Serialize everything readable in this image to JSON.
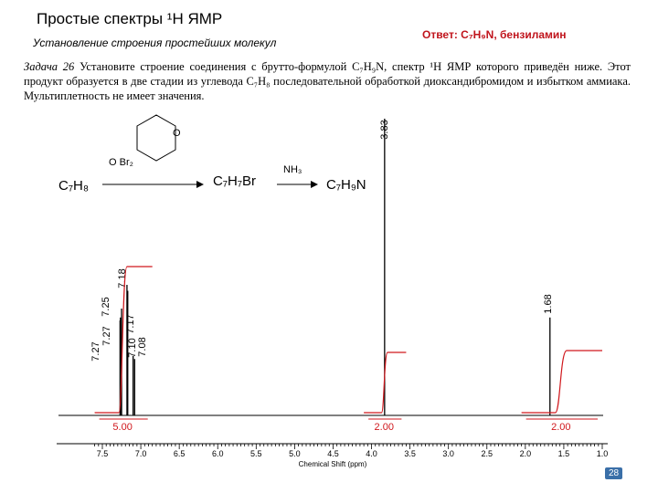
{
  "header": {
    "title": "Простые спектры ¹H ЯМР",
    "subtitle": "Установление строения простейших молекул",
    "answer": "Ответ: C₇H₉N, бензиламин"
  },
  "task": {
    "label": "Задача 26",
    "text": "Установите строение соединения с брутто-формулой C₇H₉N, спектр ¹H ЯМР которого приведён ниже. Этот продукт образуется в две стадии из углевода C₇H₈ последовательной обработкой диоксандибромидом и избытком аммиака. Мультиплетность не имеет значения."
  },
  "scheme": {
    "start": "C₇H₈",
    "reagent1": "O Br₂",
    "ring_o": "O",
    "intermediate": "C₇H₇Br",
    "reagent2": "NH₃",
    "product": "C₇H₉N"
  },
  "chart_data": {
    "type": "line",
    "xlabel": "Chemical Shift (ppm)",
    "xlim": [
      7.6,
      1.0
    ],
    "x_ticks": [
      "7.5",
      "7.0",
      "6.5",
      "6.0",
      "5.5",
      "5.0",
      "4.5",
      "4.0",
      "3.5",
      "3.0",
      "2.5",
      "2.0",
      "1.5",
      "1.0"
    ],
    "peaks": [
      {
        "label": "7.27",
        "ppm": 7.27,
        "height": 0.32
      },
      {
        "label": "7.27",
        "ppm": 7.265,
        "height": 0.33
      },
      {
        "label": "7.25",
        "ppm": 7.25,
        "height": 0.36
      },
      {
        "label": "7.18",
        "ppm": 7.18,
        "height": 0.44
      },
      {
        "label": "7.17",
        "ppm": 7.17,
        "height": 0.42
      },
      {
        "label": "7.10",
        "ppm": 7.1,
        "height": 0.2
      },
      {
        "label": "7.08",
        "ppm": 7.08,
        "height": 0.19
      },
      {
        "label": "3.83",
        "ppm": 3.83,
        "height": 1.0
      },
      {
        "label": "1.68",
        "ppm": 1.68,
        "height": 0.33
      }
    ],
    "integrals": [
      {
        "label": "5.00",
        "from": 7.6,
        "to": 6.85
      },
      {
        "label": "2.00",
        "from": 4.1,
        "to": 3.55
      },
      {
        "label": "2.00",
        "from": 2.05,
        "to": 1.0
      }
    ]
  },
  "page_number": "28"
}
